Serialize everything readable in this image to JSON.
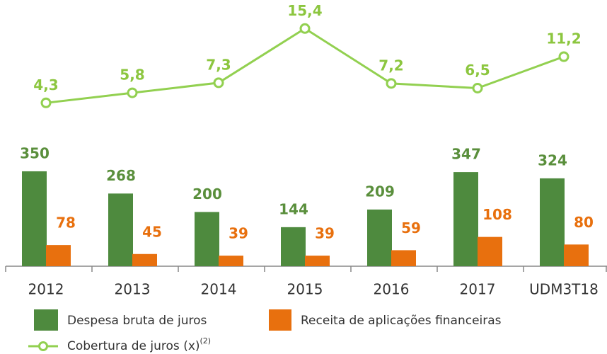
{
  "chart_data": {
    "type": "bar",
    "categories": [
      "2012",
      "2013",
      "2014",
      "2015",
      "2016",
      "2017",
      "UDM3T18"
    ],
    "series": [
      {
        "name": "Despesa bruta de juros",
        "color": "#4e8a3e",
        "label_color": "#5a8f3c",
        "values": [
          350,
          268,
          200,
          144,
          209,
          347,
          324
        ]
      },
      {
        "name": "Receita de aplicações financeiras",
        "color": "#e8700e",
        "label_color": "#e8700e",
        "values": [
          78,
          45,
          39,
          39,
          59,
          108,
          80
        ]
      },
      {
        "name": "Cobertura de juros (x)",
        "name_note": "(2)",
        "type": "line",
        "axis": "y2",
        "color": "#92d050",
        "label_color": "#8cc63f",
        "values": [
          4.3,
          5.8,
          7.3,
          15.4,
          7.2,
          6.5,
          11.2
        ],
        "value_labels": [
          "4,3",
          "5,8",
          "7,3",
          "15,4",
          "7,2",
          "6,5",
          "11,2"
        ]
      }
    ],
    "ylim": [
      0,
      400
    ],
    "y2lim": [
      0,
      16
    ]
  }
}
